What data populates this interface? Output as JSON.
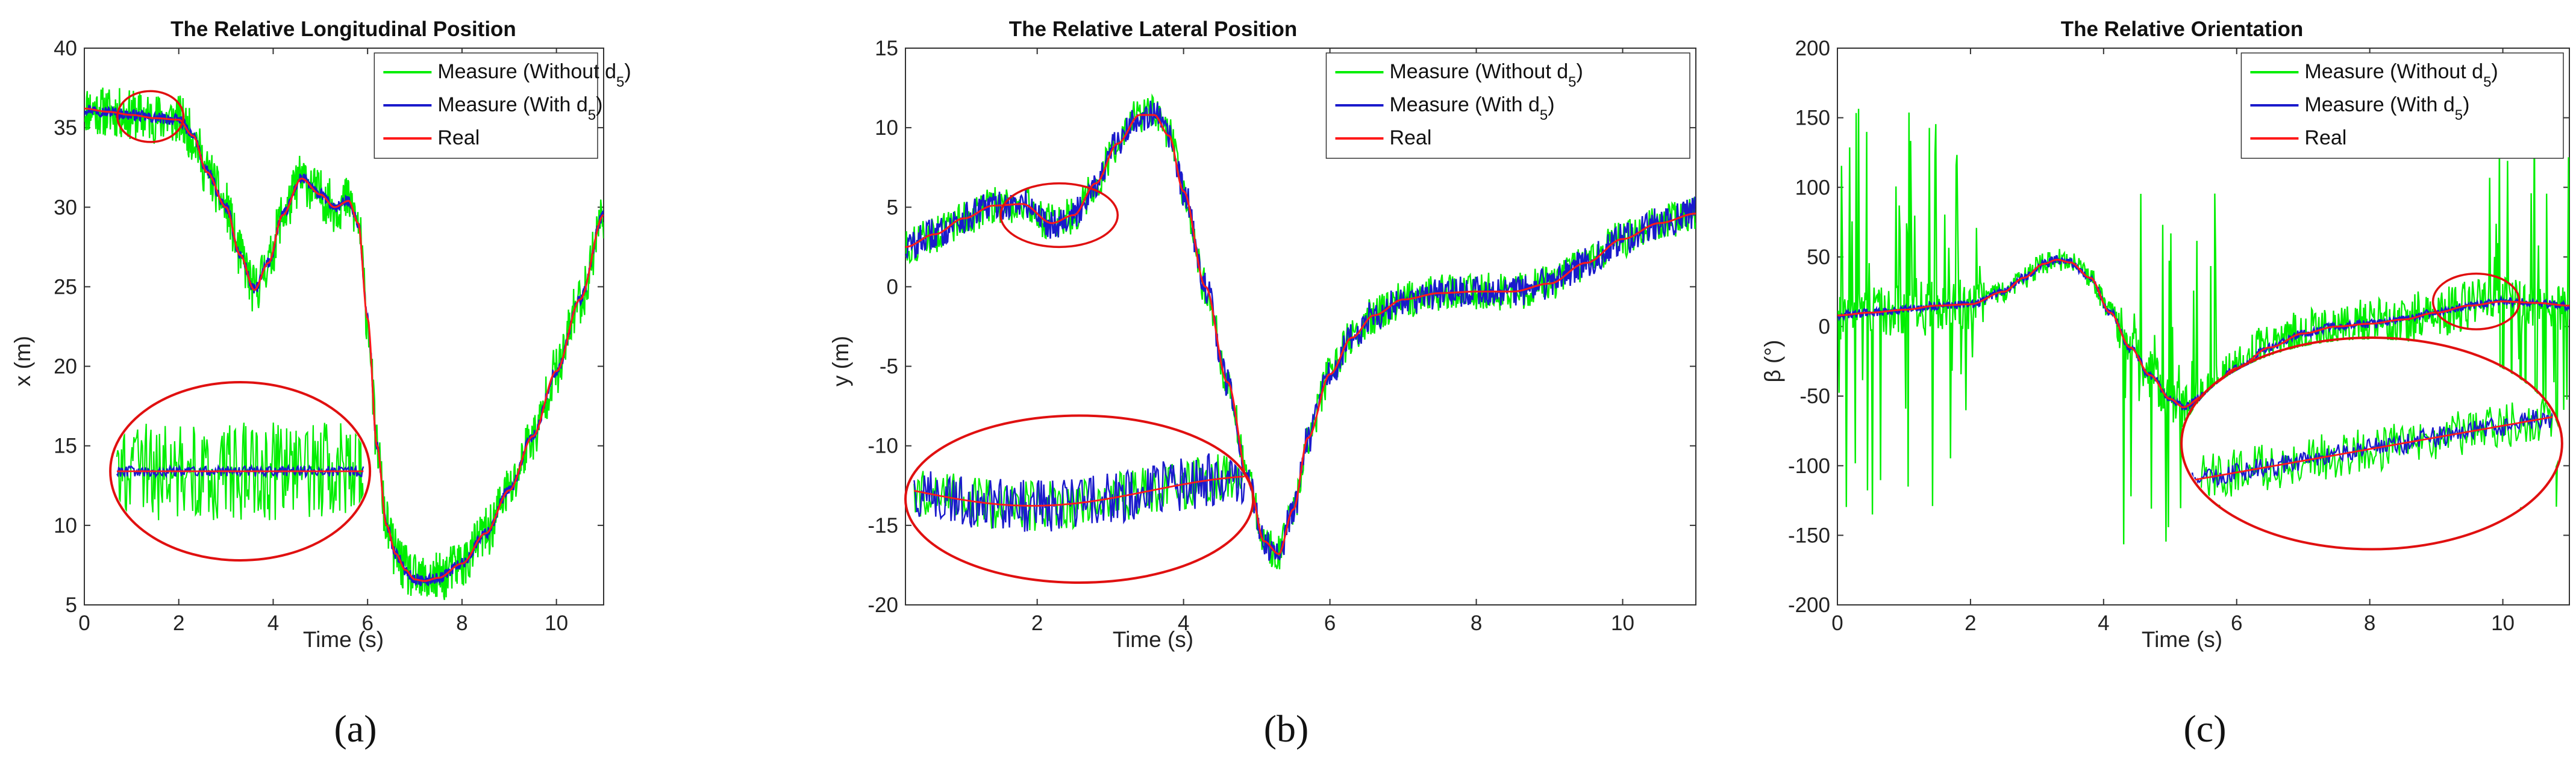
{
  "figure": {
    "sub_labels": [
      "(a)",
      "(b)",
      "(c)"
    ]
  },
  "chart_data": [
    {
      "type": "line",
      "title": "The Relative Longitudinal Position",
      "xlabel": "Time (s)",
      "ylabel": "x (m)",
      "xlim": [
        0,
        11
      ],
      "ylim": [
        5,
        40
      ],
      "xticks": [
        0,
        2,
        4,
        6,
        8,
        10
      ],
      "yticks": [
        5,
        10,
        15,
        20,
        25,
        30,
        35,
        40
      ],
      "legend": [
        "Measure (Without d5)",
        "Measure (With d5)",
        "Real"
      ],
      "legend_position": "top-right",
      "colors": {
        "without": "#00ee00",
        "with": "#1a1acc",
        "real": "#ff1a1a",
        "zoom": "#e01010"
      },
      "series": [
        {
          "name": "Real",
          "x": [
            0,
            0.5,
            1,
            1.5,
            2,
            2.3,
            2.6,
            3.0,
            3.3,
            3.6,
            3.9,
            4.2,
            4.6,
            5.0,
            5.3,
            5.6,
            5.8,
            6.0,
            6.2,
            6.4,
            6.6,
            6.8,
            7.0,
            7.2,
            7.5,
            8,
            8.5,
            9,
            9.5,
            10,
            10.5,
            11
          ],
          "y": [
            36.2,
            36.0,
            35.8,
            35.6,
            35.5,
            34.5,
            32.2,
            30.0,
            27.0,
            24.8,
            26.5,
            29.5,
            31.8,
            30.8,
            30.0,
            30.4,
            29.0,
            23.0,
            15.0,
            10.0,
            8.2,
            7.2,
            6.6,
            6.5,
            6.7,
            7.6,
            9.5,
            12.2,
            15.6,
            19.7,
            24.2,
            29.5
          ]
        }
      ],
      "noise_amplitude": {
        "Measure (Without d5)": 1.6,
        "Measure (With d5)": 0.35
      },
      "zoom_inset": "x (m) noise detail, t 0.8–2.0 s"
    },
    {
      "type": "line",
      "title": "The Relative Lateral Position",
      "xlabel": "Time (s)",
      "ylabel": "y (m)",
      "xlim": [
        0.2,
        11
      ],
      "ylim": [
        -20,
        15
      ],
      "xticks": [
        2,
        4,
        6,
        8,
        10
      ],
      "yticks": [
        -20,
        -15,
        -10,
        -5,
        0,
        5,
        10,
        15
      ],
      "legend": [
        "Measure (Without d5)",
        "Measure (With d5)",
        "Real"
      ],
      "legend_position": "top-right",
      "colors": {
        "without": "#00ee00",
        "with": "#1a1acc",
        "real": "#ff1a1a",
        "zoom": "#e01010"
      },
      "series": [
        {
          "name": "Real",
          "x": [
            0.2,
            0.6,
            1.0,
            1.4,
            1.8,
            2.2,
            2.5,
            2.8,
            3.1,
            3.4,
            3.6,
            3.8,
            4.0,
            4.3,
            4.6,
            4.9,
            5.1,
            5.3,
            5.5,
            5.7,
            6.0,
            6.3,
            6.6,
            7.0,
            7.5,
            8,
            8.5,
            9,
            9.5,
            10,
            10.5,
            11
          ],
          "y": [
            2.5,
            3.3,
            4.3,
            5.1,
            5.2,
            4.0,
            4.5,
            6.5,
            9.0,
            10.8,
            10.8,
            9.5,
            6.0,
            0.0,
            -6.0,
            -12.5,
            -16.0,
            -16.8,
            -14.0,
            -9.5,
            -5.5,
            -3.2,
            -1.8,
            -0.8,
            -0.4,
            -0.3,
            -0.3,
            0.2,
            1.5,
            3.0,
            4.0,
            4.6
          ]
        }
      ],
      "noise_amplitude": {
        "Measure (Without d5)": 1.2,
        "Measure (With d5)": 1.0
      },
      "zoom_inset": "y (m) noise detail, t 1.5–3.0 s"
    },
    {
      "type": "line",
      "title": "The Relative Orientation",
      "xlabel": "Time (s)",
      "ylabel": "β (°)",
      "xlim": [
        0,
        11
      ],
      "ylim": [
        -200,
        200
      ],
      "xticks": [
        0,
        2,
        4,
        6,
        8,
        10
      ],
      "yticks": [
        -200,
        -150,
        -100,
        -50,
        0,
        50,
        100,
        150,
        200
      ],
      "legend": [
        "Measure (Without d5)",
        "Measure (With d5)",
        "Real"
      ],
      "legend_position": "top-right",
      "colors": {
        "without": "#00ee00",
        "with": "#1a1acc",
        "real": "#ff1a1a",
        "zoom": "#e01010"
      },
      "series": [
        {
          "name": "Real",
          "x": [
            0,
            0.5,
            1,
            1.5,
            2,
            2.5,
            2.8,
            3.1,
            3.3,
            3.5,
            3.8,
            4.1,
            4.4,
            4.7,
            5.0,
            5.2,
            5.5,
            6.0,
            6.5,
            7.0,
            7.5,
            8,
            8.5,
            9,
            9.5,
            10,
            10.5,
            11
          ],
          "y": [
            8,
            10,
            12,
            15,
            16,
            25,
            35,
            45,
            48,
            46,
            35,
            10,
            -15,
            -35,
            -52,
            -58,
            -50,
            -30,
            -15,
            -5,
            0,
            2,
            5,
            10,
            15,
            18,
            17,
            15
          ]
        }
      ],
      "noise_amplitude": {
        "Measure (Without d5)": 45,
        "Measure (With d5)": 3
      },
      "zoom_inset": "β (°) noise detail, t 9–10.2 s"
    }
  ]
}
